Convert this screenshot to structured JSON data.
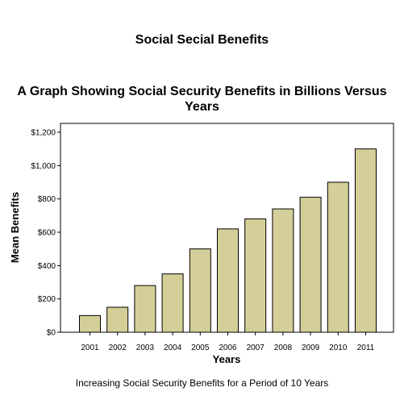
{
  "page_title": "Social Secial Benefits",
  "caption": "Increasing Social Security Benefits for a Period of 10 Years",
  "chart_data": {
    "type": "bar",
    "title_lines": [
      "A Graph Showing Social Security Benefits in Billions Versus",
      "Years"
    ],
    "xlabel": "Years",
    "ylabel": "Mean Benefits",
    "categories": [
      "2001",
      "2002",
      "2003",
      "2004",
      "2005",
      "2006",
      "2007",
      "2008",
      "2009",
      "2010",
      "2011"
    ],
    "values": [
      100,
      150,
      280,
      350,
      500,
      620,
      680,
      740,
      810,
      900,
      1100
    ],
    "ylim": [
      0,
      1200
    ],
    "yticks": [
      0,
      200,
      400,
      600,
      800,
      1000,
      1200
    ],
    "ytick_labels": [
      "$0",
      "$200",
      "$400",
      "$600",
      "$800",
      "$1,000",
      "$1,200"
    ],
    "grid": false,
    "legend": "none",
    "bar_color": "#d4cf98",
    "bar_edge_color": "#000000"
  }
}
